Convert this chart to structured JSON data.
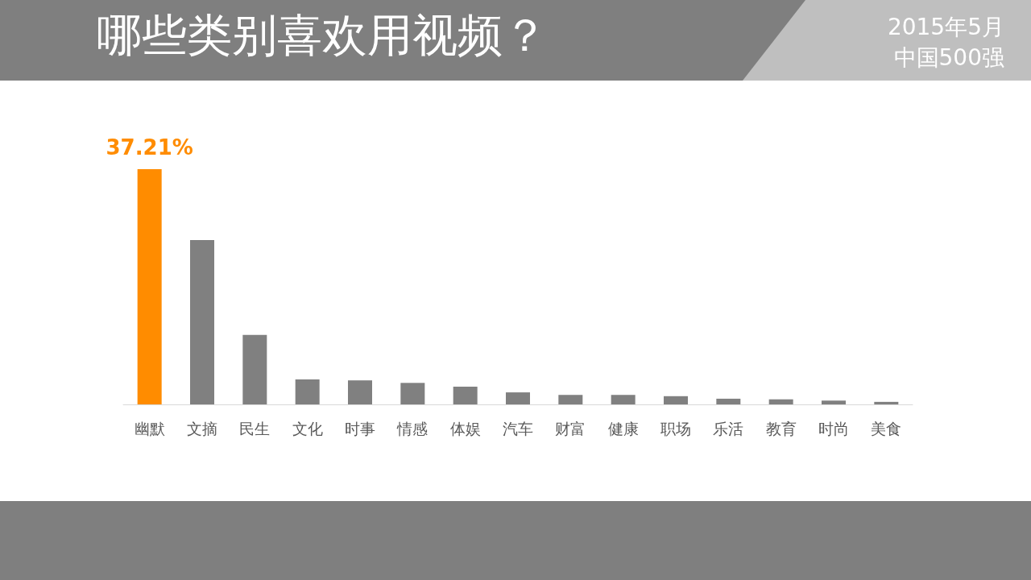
{
  "chart_data": {
    "type": "bar",
    "title": "哪些类别喜欢用视频？",
    "subtitle": "2015年5月",
    "annotations": [
      "中国500强"
    ],
    "categories": [
      "幽默",
      "文摘",
      "民生",
      "文化",
      "时事",
      "情感",
      "体娱",
      "汽车",
      "财富",
      "健康",
      "职场",
      "乐活",
      "教育",
      "时尚",
      "美食"
    ],
    "values": [
      37.21,
      26.0,
      11.0,
      3.95,
      3.8,
      3.4,
      2.8,
      1.9,
      1.5,
      1.5,
      1.3,
      0.9,
      0.8,
      0.6,
      0.4
    ],
    "colors": [
      "#ff8c00",
      "#808080",
      "#808080",
      "#808080",
      "#808080",
      "#808080",
      "#808080",
      "#808080",
      "#808080",
      "#808080",
      "#808080",
      "#808080",
      "#808080",
      "#808080",
      "#808080"
    ],
    "value_labels": [
      "37.21%",
      null,
      null,
      null,
      null,
      null,
      null,
      null,
      null,
      null,
      null,
      null,
      null,
      null,
      null
    ],
    "grid": false
  }
}
